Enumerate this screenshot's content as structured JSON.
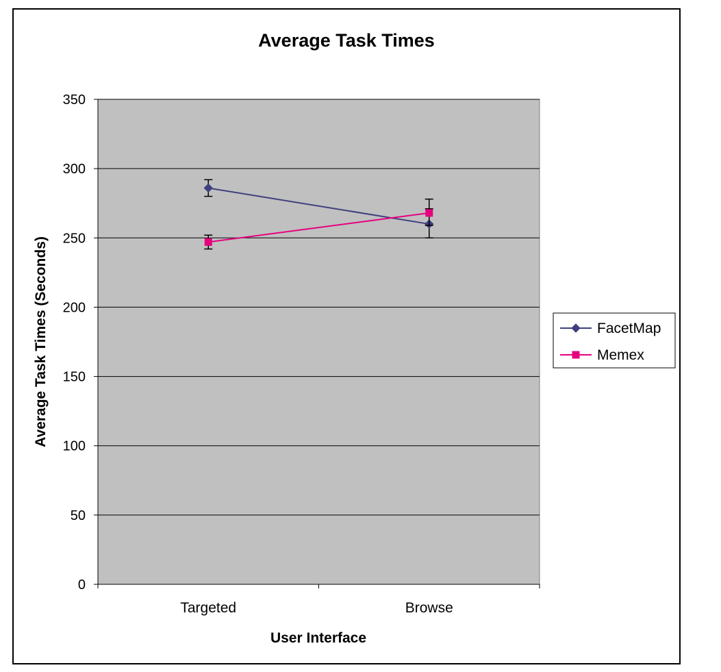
{
  "chart_data": {
    "type": "line",
    "title": "Average Task Times",
    "xlabel": "User Interface",
    "ylabel": "Average Task Times (Seconds)",
    "categories": [
      "Targeted",
      "Browse"
    ],
    "ylim": [
      0,
      350
    ],
    "yticks": [
      0,
      50,
      100,
      150,
      200,
      250,
      300,
      350
    ],
    "grid": true,
    "legend_position": "right",
    "plot_background": "#c0c0c0",
    "series": [
      {
        "name": "FacetMap",
        "values": [
          286,
          260
        ],
        "error_low": [
          280,
          250
        ],
        "error_high": [
          292,
          271
        ],
        "color": "#3f3f7f",
        "marker": "diamond"
      },
      {
        "name": "Memex",
        "values": [
          247,
          268
        ],
        "error_low": [
          242,
          259
        ],
        "error_high": [
          252,
          278
        ],
        "color": "#e6007e",
        "marker": "square"
      }
    ]
  }
}
